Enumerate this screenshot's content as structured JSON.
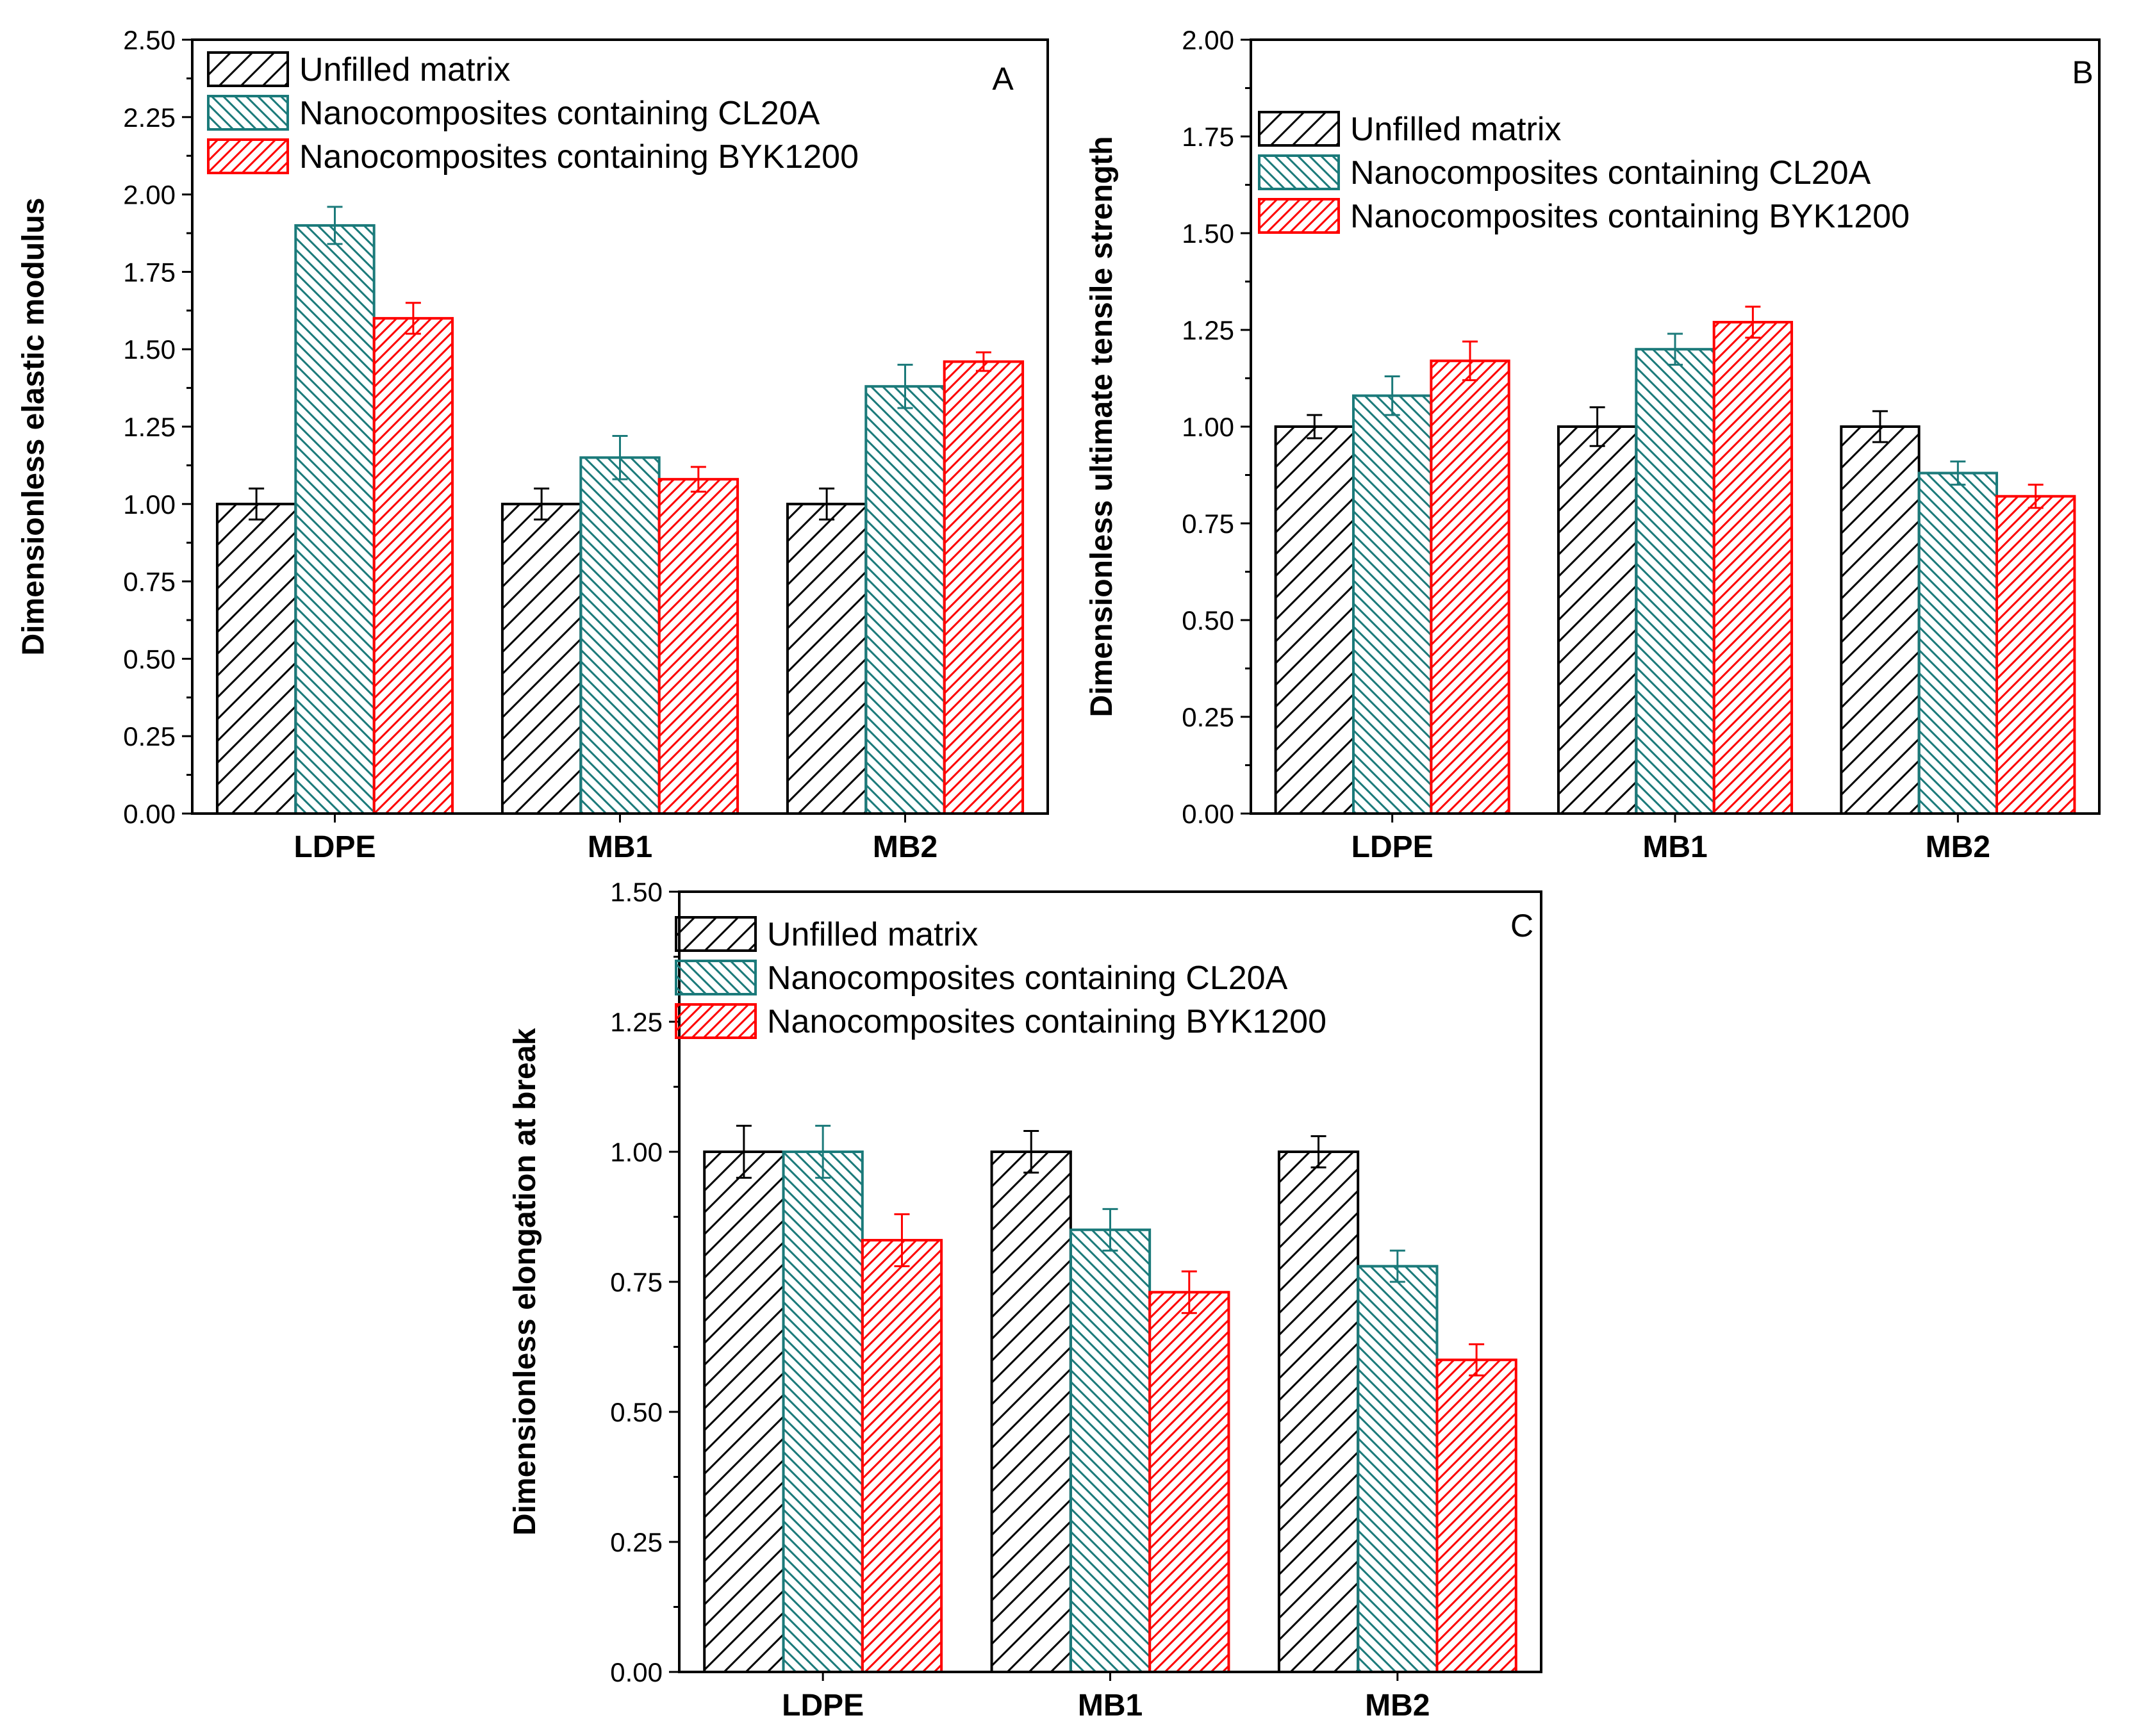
{
  "colors": {
    "unfilled": "#000000",
    "cl20a": "#1b7a7a",
    "byk1200": "#ff0000"
  },
  "chart_data": [
    {
      "type": "bar",
      "panel": "A",
      "ylabel": "Dimensionless elastic modulus",
      "ylim": [
        0,
        2.5
      ],
      "yticks": [
        "0.00",
        "0.25",
        "0.50",
        "0.75",
        "1.00",
        "1.25",
        "1.50",
        "1.75",
        "2.00",
        "2.25",
        "2.50"
      ],
      "categories": [
        "LDPE",
        "MB1",
        "MB2"
      ],
      "series": [
        {
          "name": "Unfilled matrix",
          "values": [
            1.0,
            1.0,
            1.0
          ],
          "errors": [
            0.05,
            0.05,
            0.05
          ]
        },
        {
          "name": "Nanocomposites containing CL20A",
          "values": [
            1.9,
            1.15,
            1.38
          ],
          "errors": [
            0.06,
            0.07,
            0.07
          ]
        },
        {
          "name": "Nanocomposites containing BYK1200",
          "values": [
            1.6,
            1.08,
            1.46
          ],
          "errors": [
            0.05,
            0.04,
            0.03
          ]
        }
      ],
      "legend": "top-left"
    },
    {
      "type": "bar",
      "panel": "B",
      "ylabel": "Dimensionless ultimate tensile strength",
      "ylim": [
        0,
        2.0
      ],
      "yticks": [
        "0.00",
        "0.25",
        "0.50",
        "0.75",
        "1.00",
        "1.25",
        "1.50",
        "1.75",
        "2.00"
      ],
      "categories": [
        "LDPE",
        "MB1",
        "MB2"
      ],
      "series": [
        {
          "name": "Unfilled matrix",
          "values": [
            1.0,
            1.0,
            1.0
          ],
          "errors": [
            0.03,
            0.05,
            0.04
          ]
        },
        {
          "name": "Nanocomposites containing CL20A",
          "values": [
            1.08,
            1.2,
            0.88
          ],
          "errors": [
            0.05,
            0.04,
            0.03
          ]
        },
        {
          "name": "Nanocomposites containing BYK1200",
          "values": [
            1.17,
            1.27,
            0.82
          ],
          "errors": [
            0.05,
            0.04,
            0.03
          ]
        }
      ],
      "legend": "top-left"
    },
    {
      "type": "bar",
      "panel": "C",
      "ylabel": "Dimensionless elongation at break",
      "ylim": [
        0,
        1.5
      ],
      "yticks": [
        "0.00",
        "0.25",
        "0.50",
        "0.75",
        "1.00",
        "1.25",
        "1.50"
      ],
      "categories": [
        "LDPE",
        "MB1",
        "MB2"
      ],
      "series": [
        {
          "name": "Unfilled matrix",
          "values": [
            1.0,
            1.0,
            1.0
          ],
          "errors": [
            0.05,
            0.04,
            0.03
          ]
        },
        {
          "name": "Nanocomposites containing CL20A",
          "values": [
            1.0,
            0.85,
            0.78
          ],
          "errors": [
            0.05,
            0.04,
            0.03
          ]
        },
        {
          "name": "Nanocomposites containing BYK1200",
          "values": [
            0.83,
            0.73,
            0.6
          ],
          "errors": [
            0.05,
            0.04,
            0.03
          ]
        }
      ],
      "legend": "top-left"
    }
  ]
}
